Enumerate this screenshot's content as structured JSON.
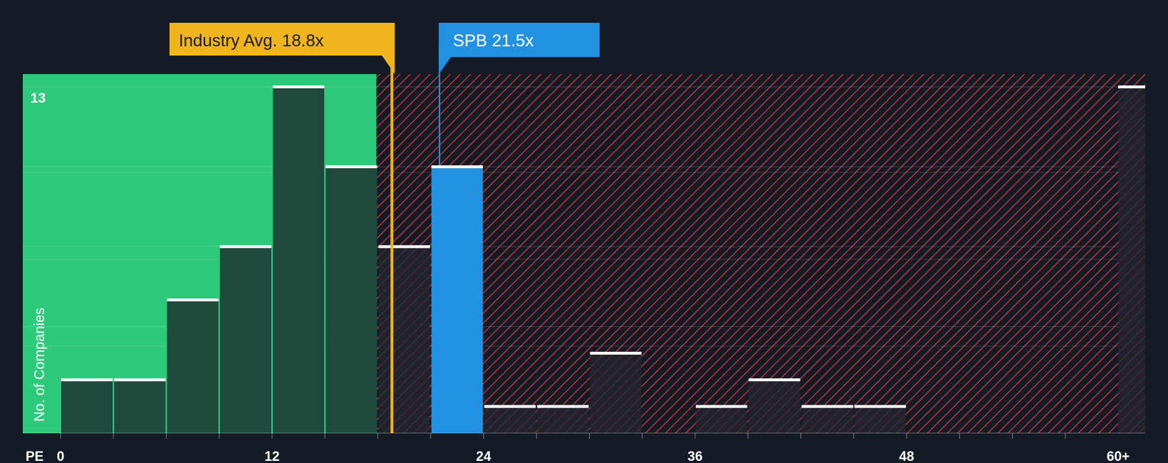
{
  "chart_data": {
    "type": "bar",
    "xlabel": "PE",
    "ylabel": "No. of Companies",
    "x_ticks": [
      {
        "value": 0,
        "label": "0"
      },
      {
        "value": 12,
        "label": "12"
      },
      {
        "value": 24,
        "label": "24"
      },
      {
        "value": 36,
        "label": "36"
      },
      {
        "value": 48,
        "label": "48"
      },
      {
        "value": 60,
        "label": "60+"
      }
    ],
    "y_max_label": "13",
    "ylim": [
      0,
      13.5
    ],
    "bin_width": 3,
    "bins": [
      {
        "start": 0,
        "count": 2
      },
      {
        "start": 3,
        "count": 2
      },
      {
        "start": 6,
        "count": 5
      },
      {
        "start": 9,
        "count": 7
      },
      {
        "start": 12,
        "count": 13
      },
      {
        "start": 15,
        "count": 10
      },
      {
        "start": 18,
        "count": 7
      },
      {
        "start": 21,
        "count": 10,
        "highlight": true
      },
      {
        "start": 24,
        "count": 1
      },
      {
        "start": 27,
        "count": 1
      },
      {
        "start": 30,
        "count": 3
      },
      {
        "start": 33,
        "count": 0
      },
      {
        "start": 36,
        "count": 1
      },
      {
        "start": 39,
        "count": 2
      },
      {
        "start": 42,
        "count": 1
      },
      {
        "start": 45,
        "count": 1
      },
      {
        "start": 60,
        "count": 13
      }
    ],
    "industry_avg": {
      "value": 18.8,
      "label": "Industry Avg. 18.8x"
    },
    "company": {
      "value": 21.5,
      "label": "SPB 21.5x"
    },
    "grid": true,
    "colors": {
      "background": "#151b24",
      "fair_zone": "#2ec97a",
      "fair_bar": "#1e4a3e",
      "over_zone_stripe": "#b8333a",
      "over_bar": "#222630",
      "highlight_bar": "#2391e1",
      "industry_marker": "#f0b41c",
      "company_marker": "#2391e1",
      "bar_cap": "#ffffff"
    }
  }
}
